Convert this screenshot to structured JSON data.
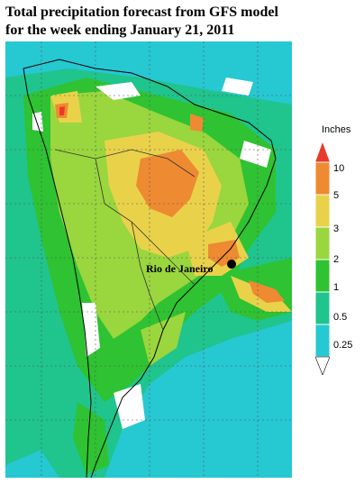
{
  "title": {
    "line1": "Total  precipitation forecast from GFS model",
    "line2": "for the week ending January 21, 2011"
  },
  "legend": {
    "unit": "Inches",
    "levels": [
      {
        "label": "10",
        "color": "#e83a2a"
      },
      {
        "label": "5",
        "color": "#ee8a32"
      },
      {
        "label": "3",
        "color": "#e9d24a"
      },
      {
        "label": "2",
        "color": "#9ad63e"
      },
      {
        "label": "1",
        "color": "#2fc232"
      },
      {
        "label": "0.5",
        "color": "#20c48d"
      },
      {
        "label": "0.25",
        "color": "#26c8d2"
      }
    ]
  },
  "map": {
    "city": "Rio de Janeiro",
    "colors": {
      "cyan": "#26c8d2",
      "teal": "#20c48d",
      "green": "#2fc232",
      "lightgreen": "#9ad63e",
      "yellow": "#e9d24a",
      "orange": "#ee8a32",
      "red": "#e83a2a",
      "dry": "#ffffff"
    }
  }
}
